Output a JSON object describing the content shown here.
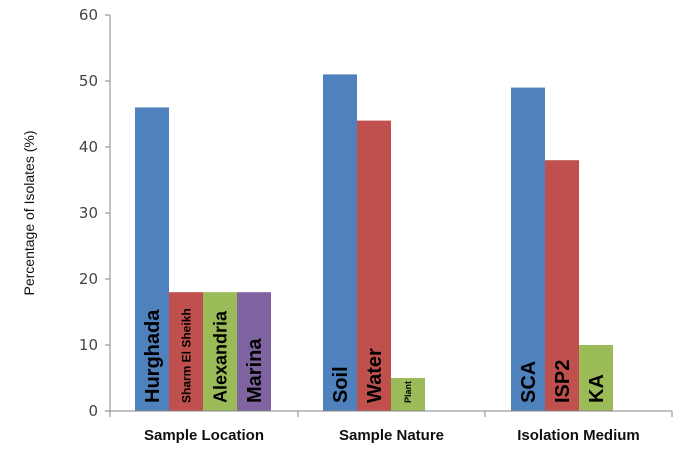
{
  "chart_data": {
    "type": "bar",
    "ylabel": "Percentage of Isolates (%)",
    "xlabel": "",
    "title": "",
    "ylim": [
      0,
      60
    ],
    "yticks": [
      0,
      10,
      20,
      30,
      40,
      50,
      60
    ],
    "grid": false,
    "legend": "none",
    "groups": [
      {
        "name": "Sample Location",
        "bars": [
          {
            "label": "Hurghada",
            "value": 46,
            "color": "#4f81bd"
          },
          {
            "label": "Sharm El Sheikh",
            "value": 18,
            "color": "#c0504d"
          },
          {
            "label": "Alexandria",
            "value": 18,
            "color": "#9bbb59"
          },
          {
            "label": "Marina",
            "value": 18,
            "color": "#8064a2"
          }
        ]
      },
      {
        "name": "Sample Nature",
        "bars": [
          {
            "label": "Soil",
            "value": 51,
            "color": "#4f81bd"
          },
          {
            "label": "Water",
            "value": 44,
            "color": "#c0504d"
          },
          {
            "label": "Plant",
            "value": 5,
            "color": "#9bbb59"
          }
        ]
      },
      {
        "name": "Isolation Medium",
        "bars": [
          {
            "label": "SCA",
            "value": 49,
            "color": "#4f81bd"
          },
          {
            "label": "ISP2",
            "value": 38,
            "color": "#c0504d"
          },
          {
            "label": "KA",
            "value": 10,
            "color": "#9bbb59"
          }
        ]
      }
    ]
  }
}
